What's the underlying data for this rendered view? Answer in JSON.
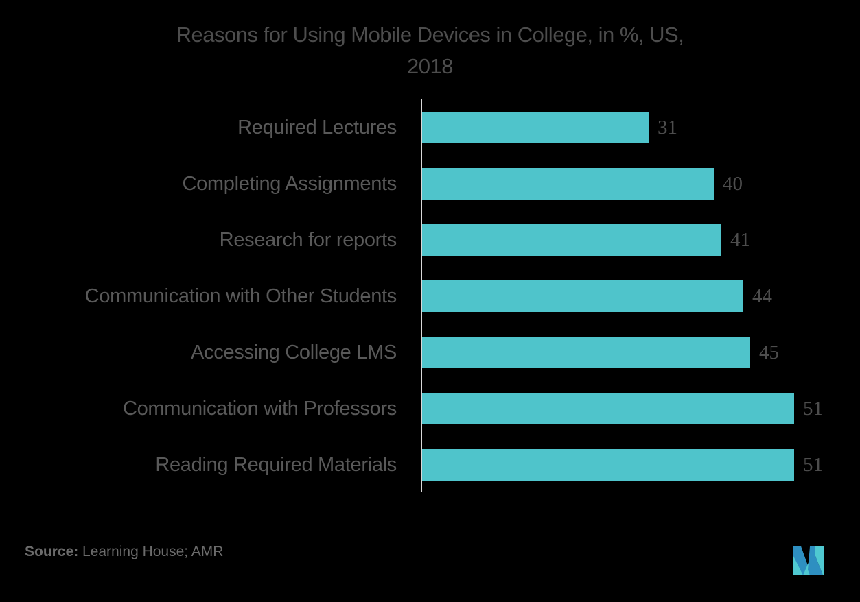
{
  "title": "Reasons for Using Mobile Devices in College, in %, US, 2018",
  "title_line1": "Reasons for Using Mobile Devices in College, in %, US,",
  "title_line2": "2018",
  "source": {
    "label": "Source:",
    "text": " Learning House; AMR"
  },
  "colors": {
    "bar": "#4fc4cb",
    "text": "#595959",
    "logo_dark": "#2e8fc1",
    "logo_light": "#4fc9d1"
  },
  "chart_data": {
    "type": "bar",
    "orientation": "horizontal",
    "title": "Reasons for Using Mobile Devices in College, in %, US, 2018",
    "xlabel": "",
    "ylabel": "",
    "categories": [
      "Required Lectures",
      "Completing Assignments",
      "Research for reports",
      "Communication with Other Students",
      "Accessing College LMS",
      "Communication with Professors",
      "Reading Required Materials"
    ],
    "values": [
      31,
      40,
      41,
      44,
      45,
      51,
      51
    ],
    "value_labels": [
      "31",
      "40",
      "41",
      "44",
      "45",
      "51",
      "51"
    ],
    "xlim": [
      0,
      55
    ],
    "grid": false,
    "legend": null,
    "source": "Learning House; AMR"
  }
}
